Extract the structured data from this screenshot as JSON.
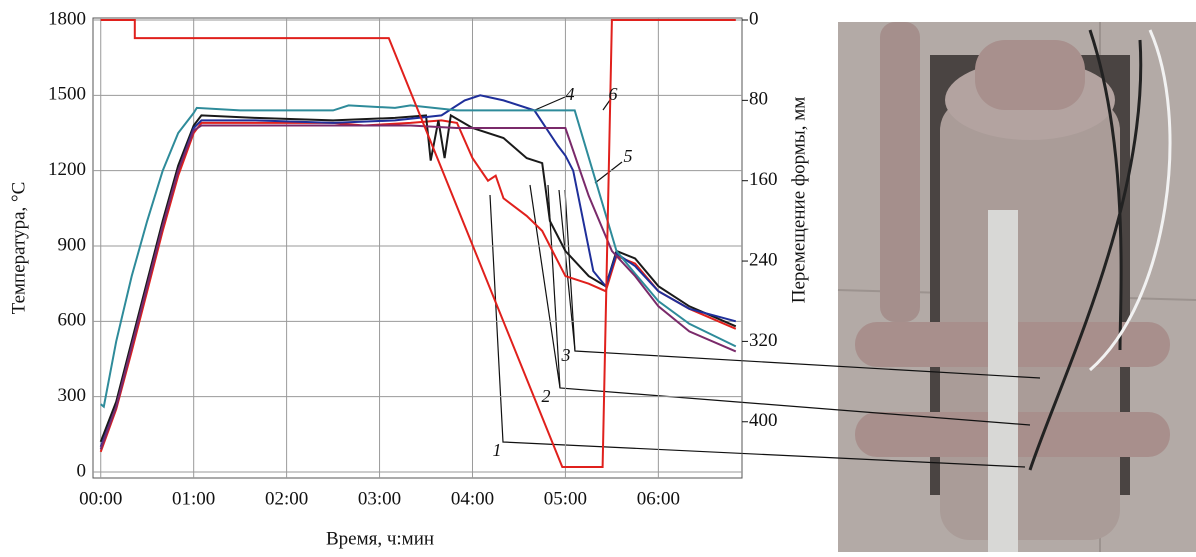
{
  "chart_data": {
    "type": "line",
    "x_label": "Время, ч:мин",
    "y_label": "Температура, °С",
    "y2_label": "Перемещение формы, мм",
    "xlim": [
      -5,
      414
    ],
    "xticks": [
      {
        "value": 0,
        "label": "00:00"
      },
      {
        "value": 60,
        "label": "01:00"
      },
      {
        "value": 120,
        "label": "02:00"
      },
      {
        "value": 180,
        "label": "03:00"
      },
      {
        "value": 240,
        "label": "04:00"
      },
      {
        "value": 300,
        "label": "05:00"
      },
      {
        "value": 360,
        "label": "06:00"
      }
    ],
    "ylim": [
      -24,
      1800
    ],
    "yticks": [
      0,
      300,
      600,
      900,
      1200,
      1500,
      1800
    ],
    "y2lim": [
      456,
      0
    ],
    "y2ticks": [
      0,
      80,
      160,
      240,
      320,
      400
    ],
    "grid": true,
    "series": [
      {
        "name": "1",
        "color": "#e0201c",
        "x": [
          0,
          10,
          20,
          30,
          40,
          50,
          60,
          65,
          100,
          150,
          170,
          200,
          220,
          230,
          240,
          250,
          255,
          260,
          275,
          285,
          300,
          315,
          326,
          333,
          345,
          360,
          380,
          410
        ],
        "values": [
          80,
          250,
          480,
          720,
          960,
          1180,
          1350,
          1390,
          1390,
          1390,
          1380,
          1390,
          1400,
          1390,
          1250,
          1160,
          1180,
          1090,
          1020,
          960,
          780,
          750,
          720,
          860,
          830,
          720,
          650,
          570
        ]
      },
      {
        "name": "2",
        "color": "#1a1a1a",
        "x": [
          0,
          10,
          20,
          30,
          40,
          50,
          60,
          65,
          100,
          150,
          190,
          210,
          213,
          218,
          222,
          226,
          240,
          260,
          275,
          285,
          290,
          300,
          315,
          326,
          333,
          345,
          360,
          380,
          410
        ],
        "values": [
          120,
          280,
          520,
          760,
          1000,
          1220,
          1380,
          1420,
          1410,
          1400,
          1410,
          1420,
          1240,
          1400,
          1250,
          1420,
          1370,
          1330,
          1250,
          1230,
          1000,
          880,
          780,
          740,
          880,
          850,
          740,
          660,
          580
        ]
      },
      {
        "name": "3",
        "color": "#1f2f9a",
        "x": [
          0,
          10,
          20,
          30,
          40,
          50,
          60,
          65,
          100,
          150,
          190,
          220,
          235,
          245,
          260,
          280,
          295,
          300,
          305,
          318,
          326,
          333,
          345,
          360,
          380,
          410
        ],
        "values": [
          100,
          260,
          500,
          740,
          980,
          1200,
          1370,
          1400,
          1400,
          1390,
          1400,
          1420,
          1480,
          1500,
          1480,
          1440,
          1300,
          1260,
          1200,
          800,
          740,
          870,
          820,
          720,
          650,
          600
        ]
      },
      {
        "name": "4",
        "color": "#2e8b9a",
        "x": [
          0,
          2,
          10,
          20,
          30,
          40,
          50,
          60,
          62,
          90,
          120,
          150,
          160,
          190,
          200,
          230,
          260,
          300,
          306,
          320,
          333,
          345,
          360,
          380,
          410
        ],
        "values": [
          270,
          260,
          520,
          780,
          1000,
          1200,
          1350,
          1430,
          1450,
          1440,
          1440,
          1440,
          1460,
          1450,
          1460,
          1440,
          1440,
          1440,
          1440,
          1150,
          880,
          790,
          680,
          590,
          500
        ]
      },
      {
        "name": "5",
        "color": "#7a2a6a",
        "x": [
          0,
          10,
          20,
          30,
          40,
          50,
          60,
          65,
          100,
          200,
          230,
          270,
          300,
          315,
          330,
          345,
          360,
          380,
          410
        ],
        "values": [
          90,
          260,
          500,
          740,
          980,
          1200,
          1360,
          1380,
          1380,
          1380,
          1370,
          1370,
          1370,
          1100,
          880,
          780,
          660,
          560,
          480
        ]
      },
      {
        "name": "6",
        "color": "#e0201c",
        "axis": "y2",
        "x": [
          0,
          22,
          22,
          186,
          298,
          324,
          330,
          410
        ],
        "values": [
          0,
          0,
          18,
          18,
          445,
          445,
          0,
          0
        ]
      }
    ]
  }
}
